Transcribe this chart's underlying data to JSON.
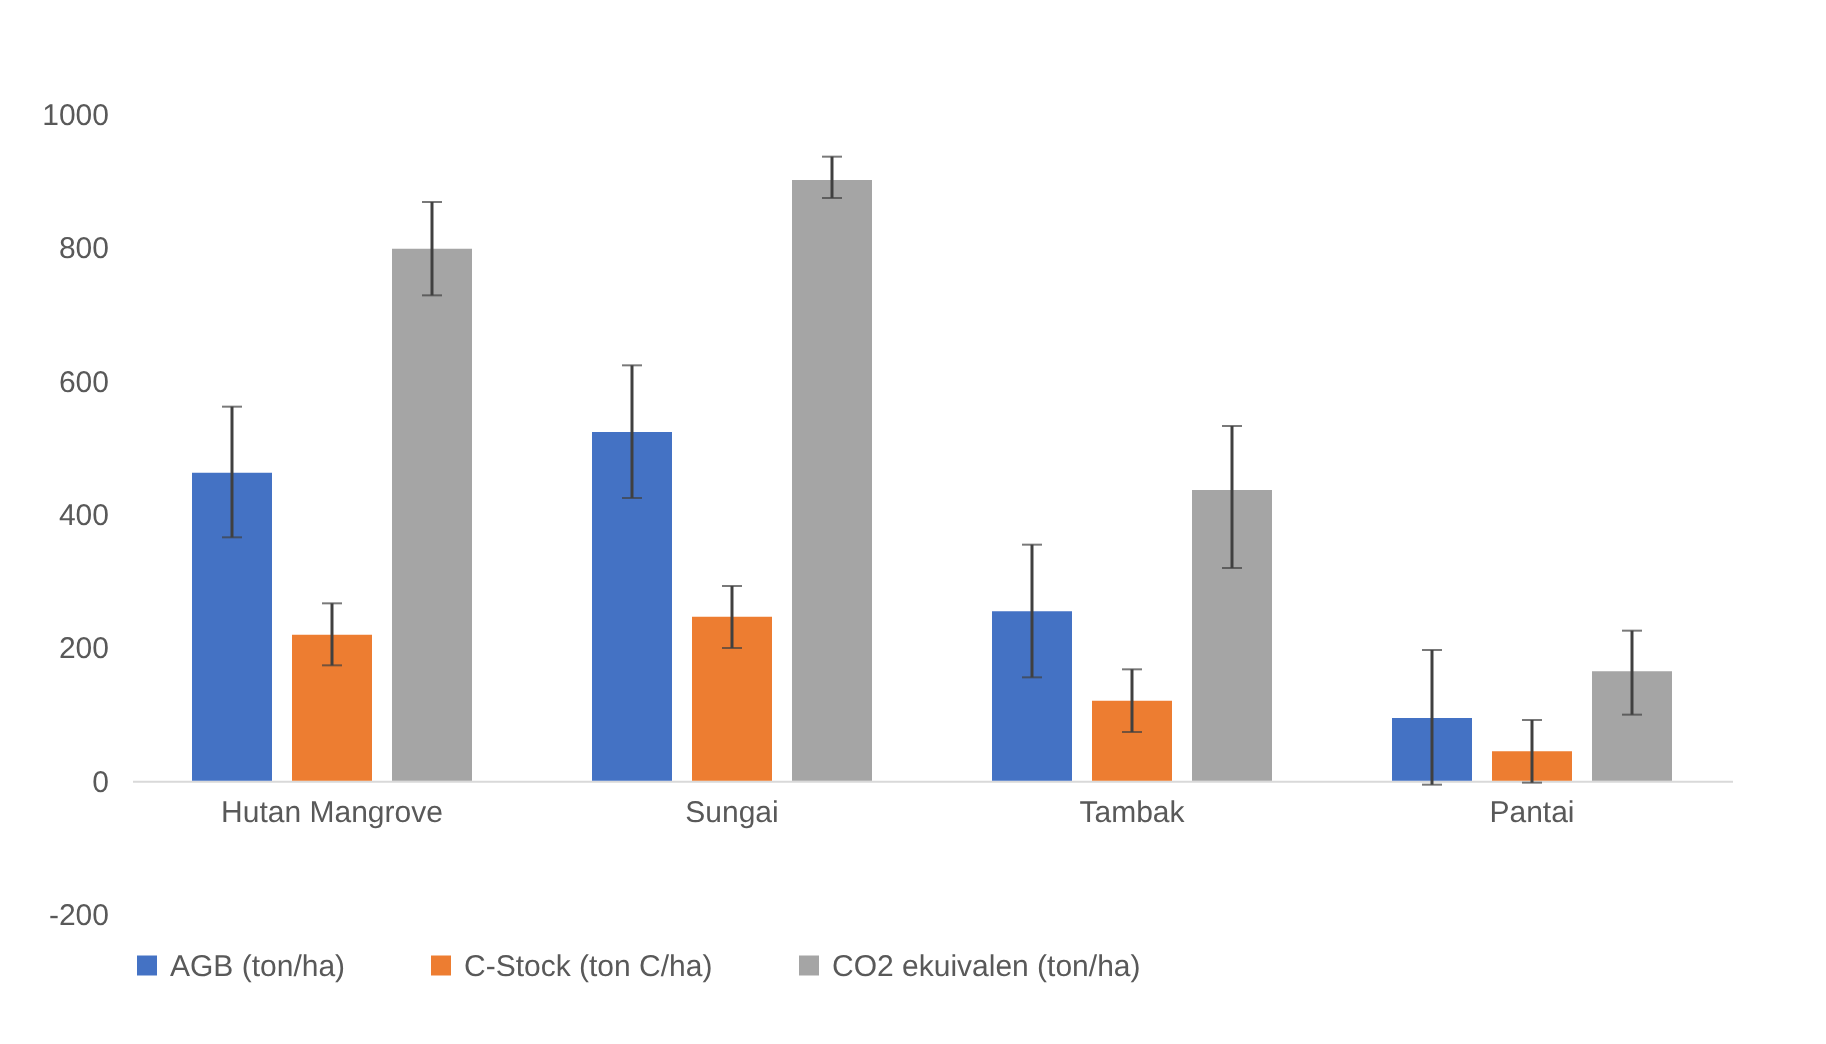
{
  "chart_data": {
    "type": "bar",
    "categories": [
      "Hutan Mangrove",
      "Sungai",
      "Tambak",
      "Pantai"
    ],
    "series": [
      {
        "name": "AGB (ton/ha)",
        "color": "#4472c4",
        "values": [
          462,
          523,
          254,
          94
        ],
        "errors": [
          [
            365,
            561
          ],
          [
            424,
            623
          ],
          [
            155,
            354
          ],
          [
            -6,
            196
          ]
        ]
      },
      {
        "name": "C-Stock (ton C/ha)",
        "color": "#ed7d31",
        "values": [
          219,
          246,
          120,
          44
        ],
        "errors": [
          [
            173,
            266
          ],
          [
            199,
            292
          ],
          [
            73,
            167
          ],
          [
            -3,
            91
          ]
        ]
      },
      {
        "name": "CO2 ekuivalen (ton/ha)",
        "color": "#a5a5a5",
        "values": [
          798,
          901,
          436,
          164
        ],
        "errors": [
          [
            728,
            868
          ],
          [
            874,
            936
          ],
          [
            319,
            532
          ],
          [
            99,
            225
          ]
        ]
      }
    ],
    "ylim": [
      -200,
      1000
    ],
    "yticks": [
      -200,
      0,
      200,
      400,
      600,
      800,
      1000
    ],
    "grid": false,
    "legend": "bottom"
  }
}
